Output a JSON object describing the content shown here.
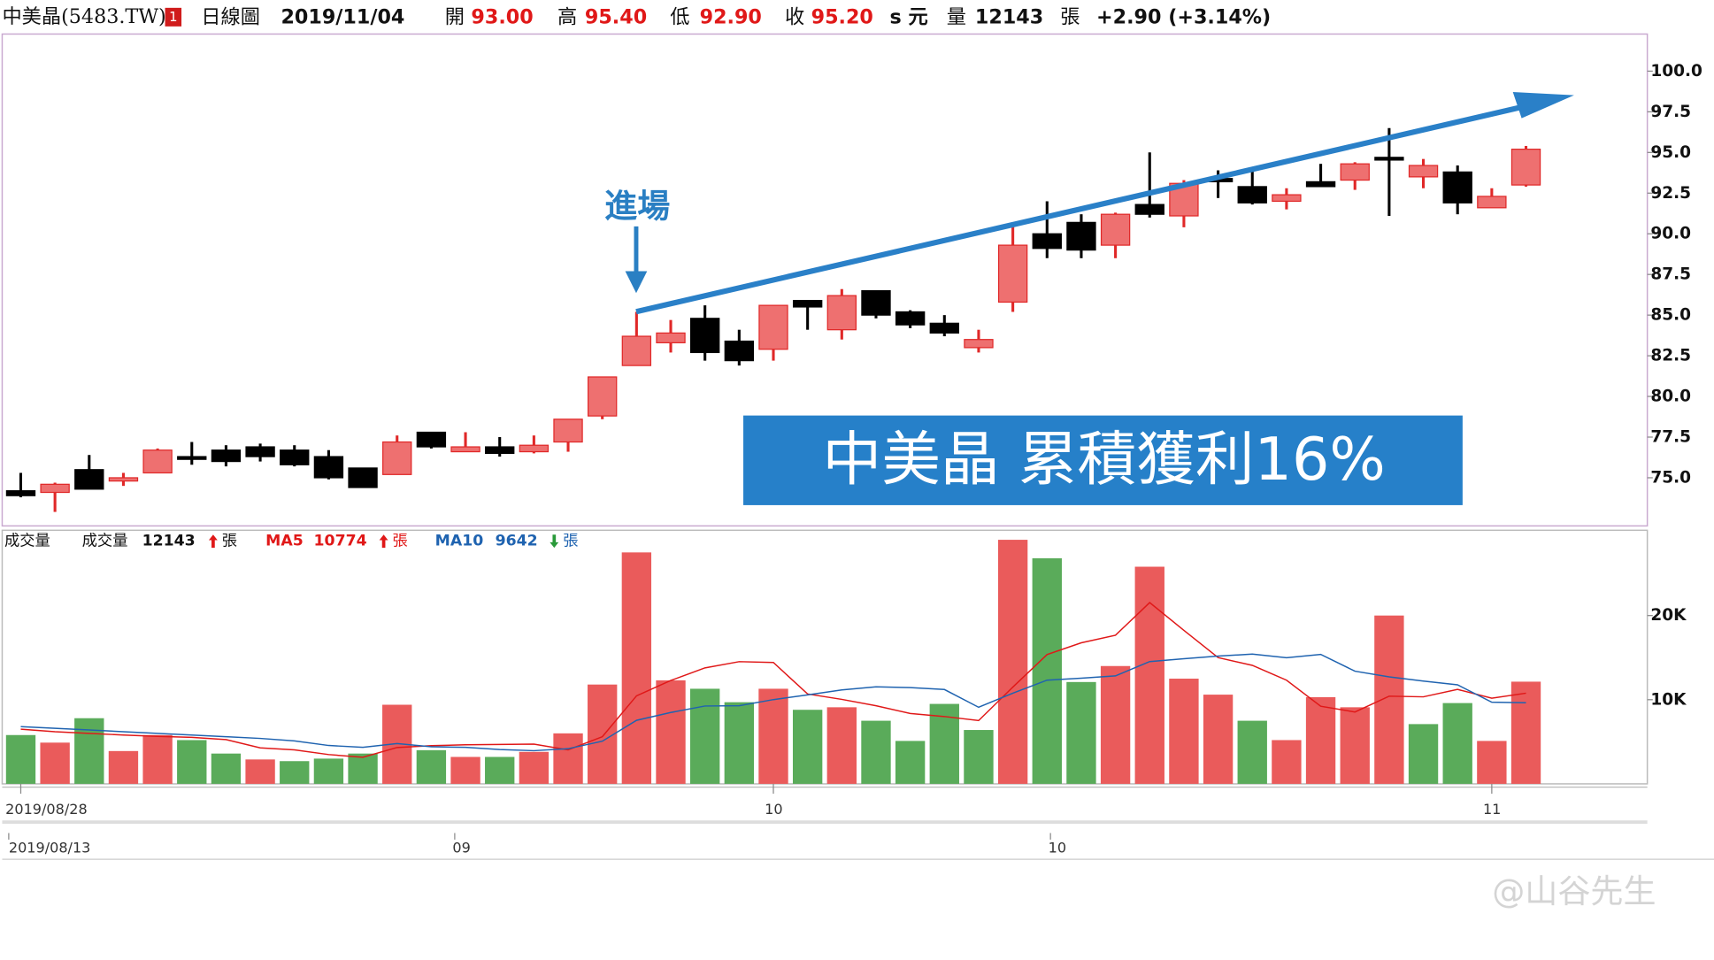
{
  "header": {
    "name": "中美晶(5483.TW)",
    "badge": "1",
    "period": "日線圖",
    "date": "2019/11/04",
    "open_label": "開",
    "open": "93.00",
    "high_label": "高",
    "high": "95.40",
    "low_label": "低",
    "low": "92.90",
    "close_label": "收",
    "close": "95.20",
    "currency": "s 元",
    "volume_label": "量",
    "volume": "12143",
    "volume_unit": "張",
    "change": "+2.90 (+3.14%)"
  },
  "annotations": {
    "entry": "進場",
    "result": "中美晶 累積獲利16%"
  },
  "watermark": "@山谷先生",
  "navigator": {
    "labels": [
      "2019/08/13",
      "09",
      "10"
    ]
  },
  "chart_data": [
    {
      "type": "candlestick",
      "up_color": "#ee7070",
      "up_edge": "#e02828",
      "down_color": "#000000",
      "ylim": [
        72.04,
        102.28
      ],
      "yticks": [
        {
          "value": 75,
          "label": "75.0"
        },
        {
          "value": 77.5,
          "label": "77.5"
        },
        {
          "value": 80,
          "label": "80.0"
        },
        {
          "value": 82.5,
          "label": "82.5"
        },
        {
          "value": 85,
          "label": "85.0"
        },
        {
          "value": 87.5,
          "label": "87.5"
        },
        {
          "value": 90,
          "label": "90.0"
        },
        {
          "value": 92.5,
          "label": "92.5"
        },
        {
          "value": 95,
          "label": "95.0"
        },
        {
          "value": 97.5,
          "label": "97.5"
        },
        {
          "value": 100,
          "label": "100.0"
        }
      ],
      "open": [
        74.2,
        74.1,
        75.5,
        74.8,
        75.3,
        76.3,
        76.7,
        76.9,
        76.7,
        76.3,
        75.6,
        75.2,
        77.8,
        76.6,
        76.9,
        76.6,
        77.2,
        78.8,
        81.9,
        83.3,
        84.8,
        83.4,
        82.9,
        85.9,
        84.1,
        86.5,
        85.2,
        84.5,
        83.0,
        85.8,
        90.0,
        90.7,
        89.3,
        91.8,
        91.1,
        93.4,
        92.9,
        92.0,
        93.2,
        93.3,
        94.7,
        93.5,
        93.8,
        91.6,
        93.0
      ],
      "high": [
        75.3,
        74.7,
        76.4,
        75.3,
        76.8,
        77.2,
        77.0,
        77.1,
        77.0,
        76.7,
        75.6,
        77.6,
        77.8,
        77.8,
        77.5,
        77.6,
        78.6,
        81.2,
        85.2,
        84.7,
        85.6,
        84.1,
        85.6,
        85.9,
        86.6,
        86.5,
        85.3,
        85.0,
        84.1,
        90.5,
        92.0,
        91.2,
        91.3,
        95.0,
        93.3,
        93.9,
        94.0,
        92.8,
        94.3,
        94.4,
        96.5,
        94.6,
        94.2,
        92.8,
        95.4
      ],
      "low": [
        73.8,
        72.9,
        74.3,
        74.5,
        75.3,
        75.8,
        75.7,
        76.0,
        75.7,
        74.9,
        74.4,
        75.2,
        76.8,
        76.6,
        76.3,
        76.5,
        76.6,
        78.6,
        81.9,
        82.7,
        82.2,
        81.9,
        82.2,
        84.1,
        83.5,
        84.8,
        84.2,
        83.7,
        82.7,
        85.2,
        88.5,
        88.5,
        88.5,
        91.0,
        90.4,
        92.2,
        91.8,
        91.5,
        92.9,
        92.7,
        91.1,
        92.8,
        91.2,
        91.6,
        92.9
      ],
      "close": [
        73.9,
        74.6,
        74.3,
        75.0,
        76.7,
        76.2,
        76.0,
        76.3,
        75.8,
        75.0,
        74.4,
        77.2,
        76.9,
        76.9,
        76.5,
        77.0,
        78.6,
        81.2,
        83.7,
        83.9,
        82.7,
        82.2,
        85.6,
        85.5,
        86.2,
        85.0,
        84.4,
        83.9,
        83.5,
        89.3,
        89.1,
        89.0,
        91.2,
        91.2,
        93.1,
        93.2,
        91.9,
        92.4,
        92.9,
        94.3,
        94.6,
        94.2,
        91.9,
        92.3,
        95.2
      ]
    },
    {
      "type": "volume",
      "title": "成交量",
      "unit": "張",
      "up_color": "#ea5b5b",
      "down_color": "#5aab5a",
      "ylim": [
        0,
        30130
      ],
      "yticks": [
        {
          "value": 10000,
          "label": "10K"
        },
        {
          "value": 20000,
          "label": "20K"
        }
      ],
      "categories": [
        "2019/08/28",
        null,
        null,
        null,
        null,
        null,
        null,
        null,
        null,
        null,
        null,
        null,
        null,
        null,
        null,
        null,
        null,
        null,
        null,
        null,
        null,
        null,
        "10",
        null,
        null,
        null,
        null,
        null,
        null,
        null,
        null,
        null,
        null,
        null,
        null,
        null,
        null,
        null,
        null,
        null,
        null,
        null,
        null,
        "11",
        null
      ],
      "series": [
        {
          "name": "成交量",
          "color": "#111111",
          "values": [
            5800,
            4900,
            7800,
            3900,
            5800,
            5200,
            3600,
            2900,
            2700,
            3000,
            3600,
            9400,
            4000,
            3200,
            3200,
            3800,
            6000,
            11800,
            27500,
            12300,
            11300,
            9700,
            11300,
            8800,
            9100,
            7500,
            5100,
            9500,
            6400,
            29000,
            26800,
            12100,
            14000,
            25800,
            12500,
            10600,
            7500,
            5200,
            10300,
            9100,
            20000,
            7100,
            9600,
            5100,
            12143
          ]
        },
        {
          "name": "MA5",
          "color": "#e01818",
          "values": [
            6500,
            6200,
            6000,
            5800,
            5640,
            5520,
            5260,
            4280,
            4040,
            3480,
            3160,
            4320,
            4540,
            4640,
            4680,
            4720,
            4040,
            5600,
            10460,
            12280,
            13780,
            14520,
            14420,
            10680,
            10040,
            9280,
            8360,
            8000,
            7520,
            11500,
            15360,
            16760,
            17660,
            21540,
            18240,
            15000,
            14080,
            12320,
            9220,
            8540,
            10420,
            10340,
            11220,
            10180,
            10774
          ]
        },
        {
          "name": "MA10",
          "color": "#1f63b0",
          "values": [
            6800,
            6600,
            6400,
            6200,
            6000,
            5800,
            5600,
            5400,
            5100,
            4560,
            4340,
            4790,
            4410,
            4340,
            4080,
            3940,
            4180,
            5070,
            7550,
            8480,
            9250,
            9280,
            10010,
            10570,
            11160,
            11530,
            11440,
            11210,
            9100,
            10770,
            12320,
            12560,
            12830,
            14530,
            14870,
            15180,
            15420,
            14990,
            15380,
            13390,
            12710,
            12210,
            11770,
            9700,
            9642
          ]
        }
      ]
    }
  ]
}
